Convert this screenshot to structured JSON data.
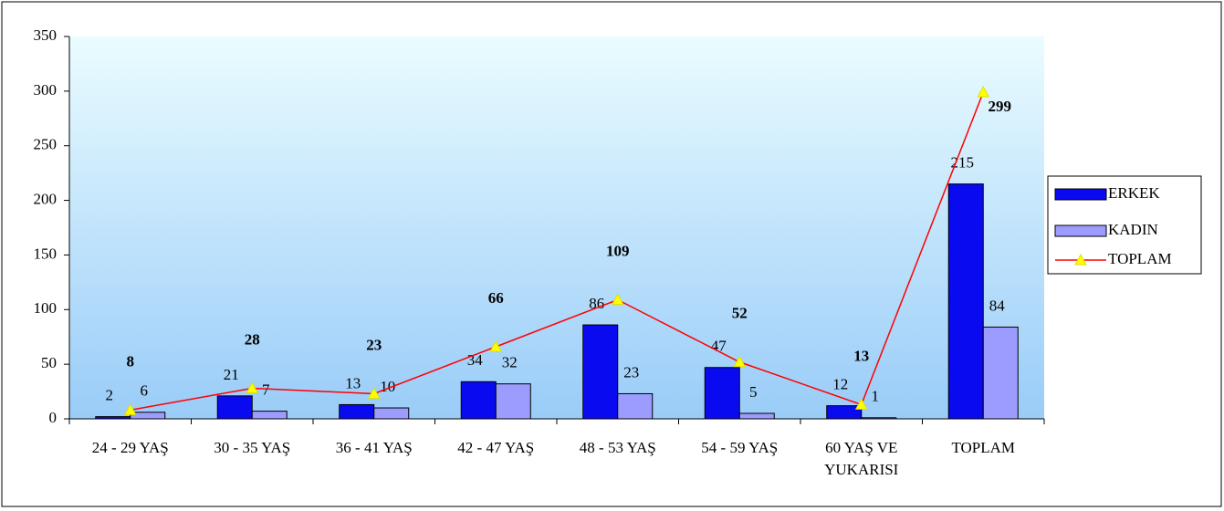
{
  "chart_data": {
    "type": "bar",
    "categories": [
      "24 - 29 YAŞ",
      "30 - 35 YAŞ",
      "36 - 41 YAŞ",
      "42 - 47 YAŞ",
      "48 - 53 YAŞ",
      "54 - 59 YAŞ",
      "60 YAŞ VE YUKARISI",
      "TOPLAM"
    ],
    "series": [
      {
        "name": "ERKEK",
        "type": "bar",
        "color": "#0a0af0",
        "values": [
          2,
          21,
          13,
          34,
          86,
          47,
          12,
          215
        ]
      },
      {
        "name": "KADIN",
        "type": "bar",
        "color": "#9c9cff",
        "values": [
          6,
          7,
          10,
          32,
          23,
          5,
          1,
          84
        ]
      },
      {
        "name": "TOPLAM",
        "type": "line",
        "color": "#ff0000",
        "values": [
          8,
          28,
          23,
          66,
          109,
          52,
          13,
          299
        ]
      }
    ],
    "ylim": [
      0,
      350
    ],
    "yticks": [
      0,
      50,
      100,
      150,
      200,
      250,
      300,
      350
    ],
    "legend": "right"
  }
}
